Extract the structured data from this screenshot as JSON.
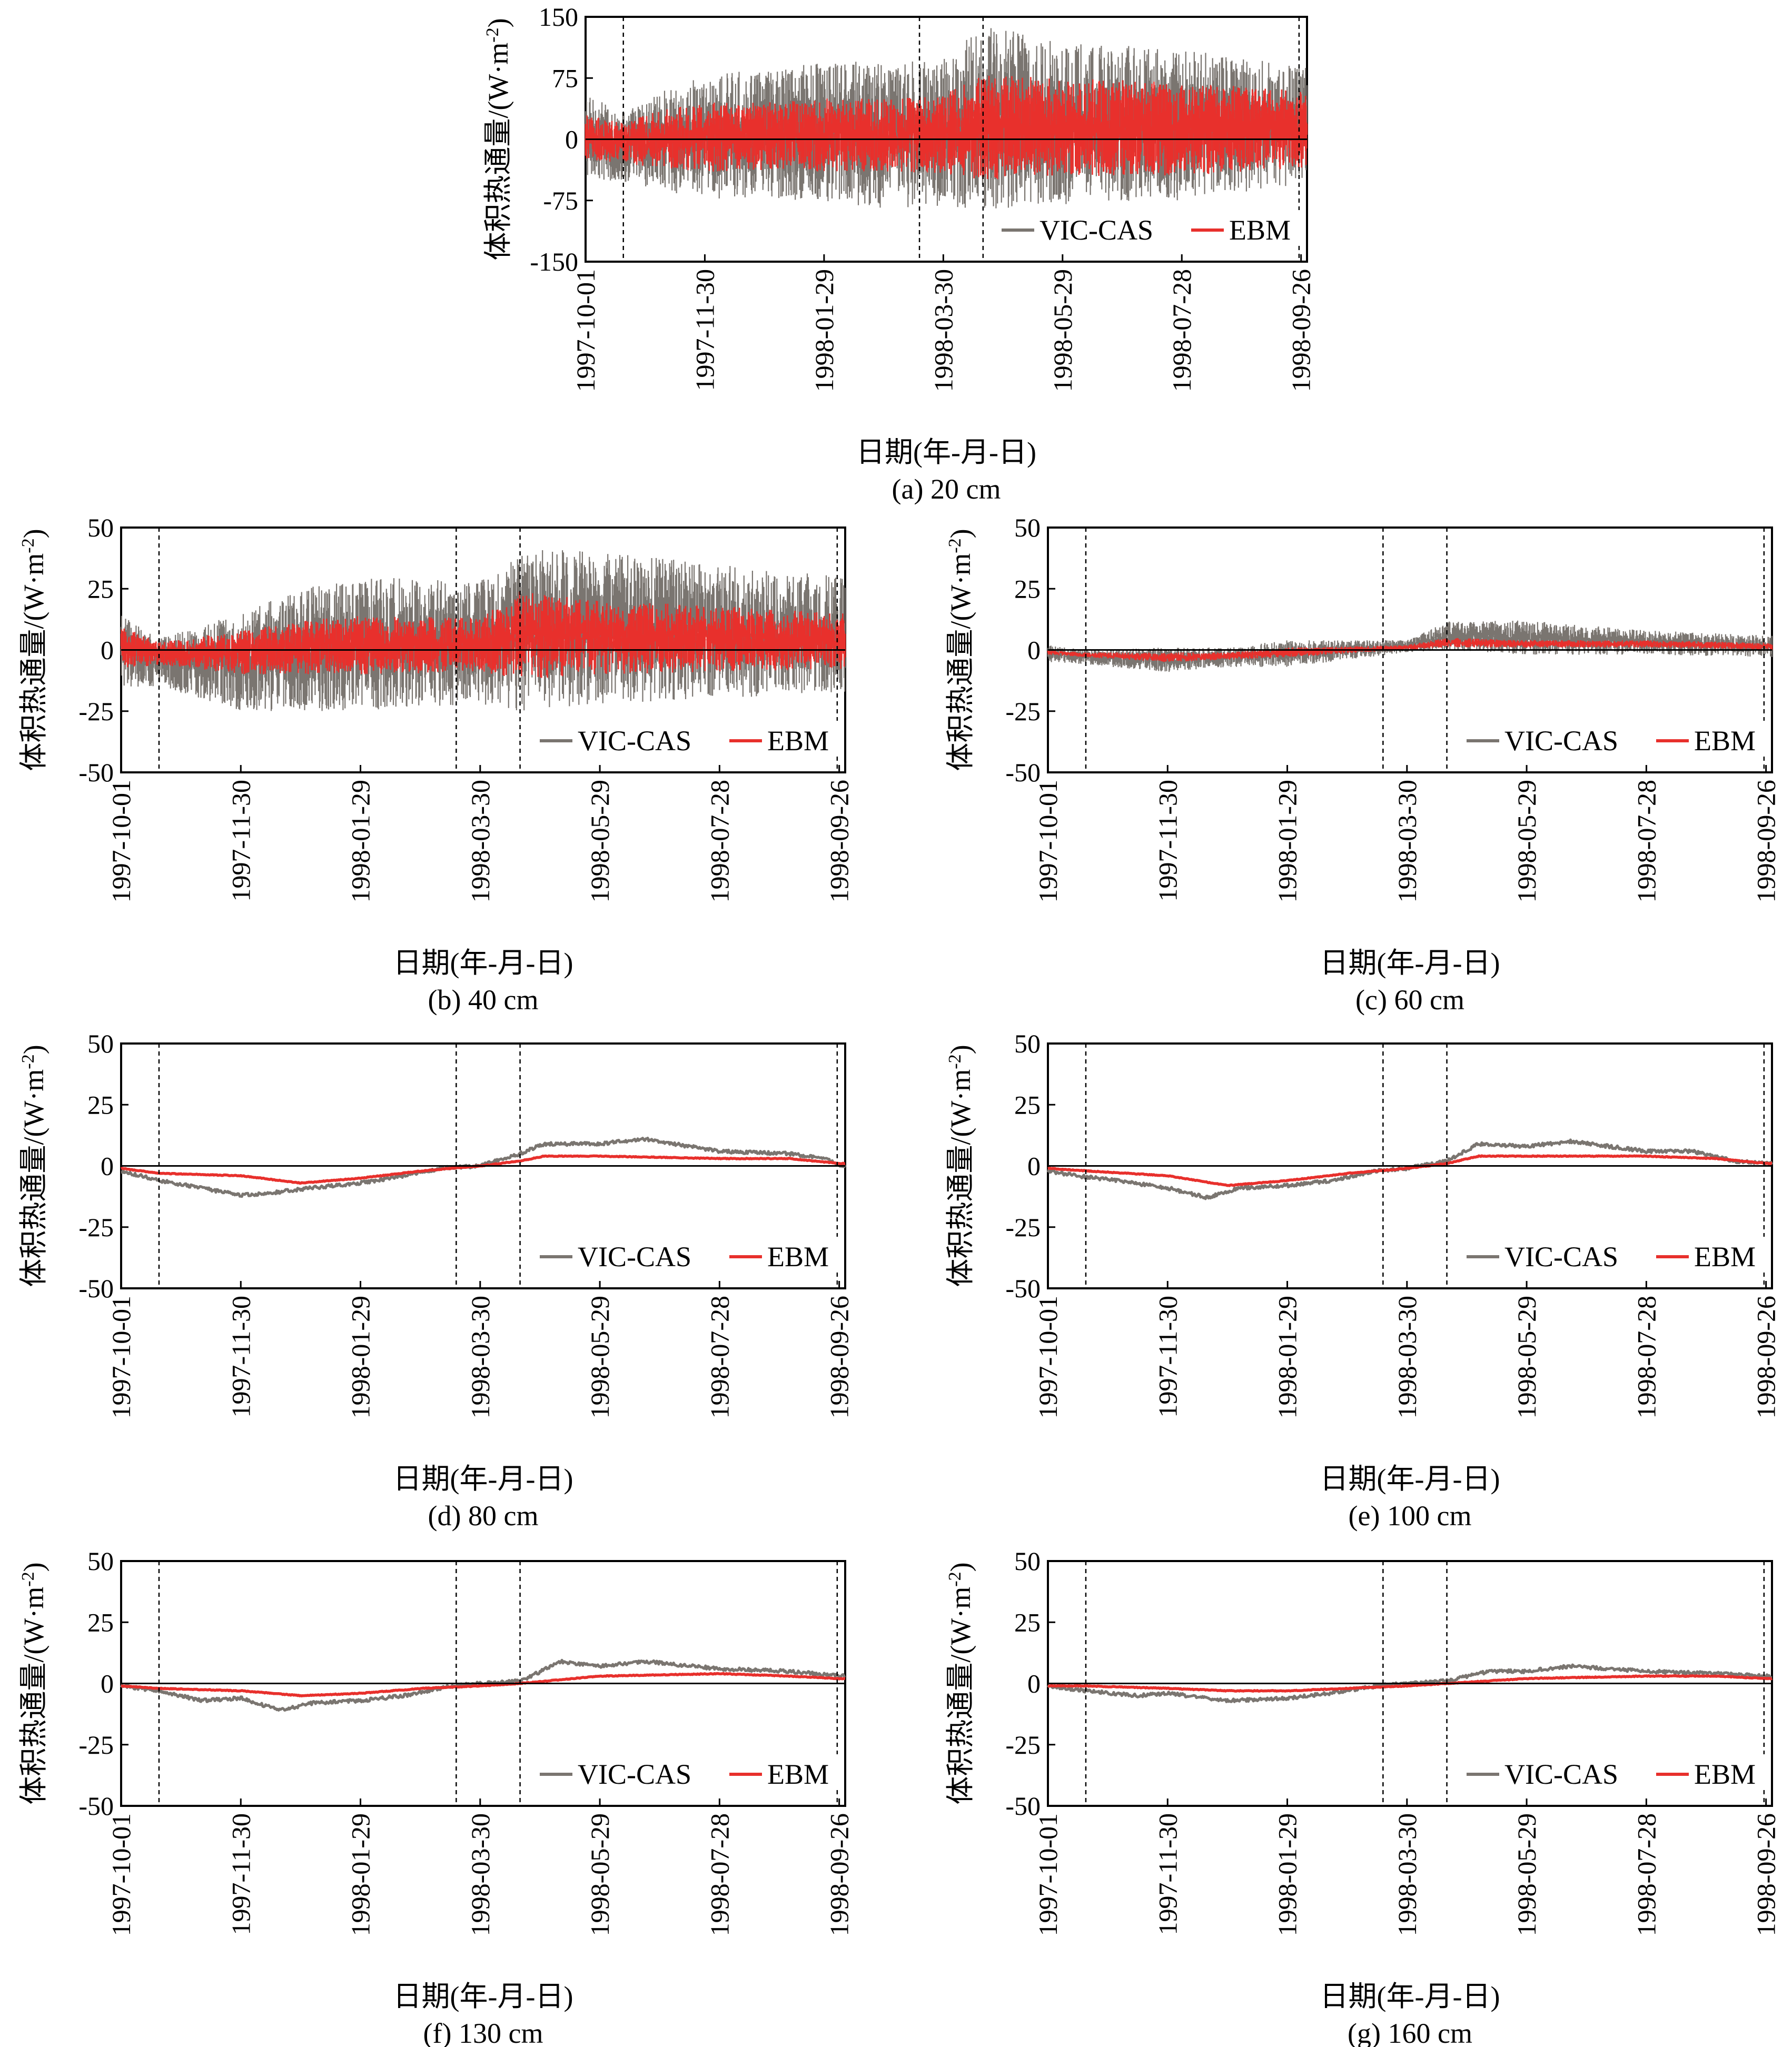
{
  "figure": {
    "x_ticks": [
      "1997-10-01",
      "1997-11-30",
      "1998-01-29",
      "1998-03-30",
      "1998-05-29",
      "1998-07-28",
      "1998-09-26"
    ],
    "xlabel": "日期(年-月-日)",
    "ylabel_main": "体积热通量/(W·m",
    "ylabel_sup": "-2",
    "ylabel_close": ")",
    "legend": [
      "VIC-CAS",
      "EBM"
    ],
    "colors": {
      "VIC-CAS": "#7a7570",
      "EBM": "#e8302c",
      "zero_line": "#000000",
      "divider": "#000000"
    },
    "dividers": [
      "1997-10-20",
      "1998-03-18",
      "1998-04-19",
      "1998-09-25"
    ]
  },
  "chart_data": [
    {
      "type": "line",
      "caption": "(a) 20 cm",
      "ylim": [
        -150,
        150
      ],
      "yticks": [
        -150,
        -75,
        0,
        75,
        150
      ],
      "xlabel": "日期(年-月-日)",
      "ylabel": "体积热通量/(W·m-2)",
      "grid": false,
      "legend_position": "bottom-right",
      "noisy": true,
      "series": [
        {
          "name": "VIC-CAS",
          "x": [
            "1997-10-01",
            "1997-10-20",
            "1997-11-05",
            "1997-11-30",
            "1997-12-30",
            "1998-01-29",
            "1998-02-28",
            "1998-03-30",
            "1998-04-19",
            "1998-05-29",
            "1998-07-28",
            "1998-09-26"
          ],
          "upper": [
            55,
            35,
            55,
            80,
            85,
            95,
            95,
            100,
            140,
            120,
            110,
            90
          ],
          "lower": [
            -45,
            -55,
            -60,
            -75,
            -70,
            -80,
            -85,
            -85,
            -90,
            -80,
            -75,
            -55
          ]
        },
        {
          "name": "EBM",
          "x": [
            "1997-10-01",
            "1997-10-20",
            "1997-11-05",
            "1997-11-30",
            "1997-12-30",
            "1998-01-29",
            "1998-02-28",
            "1998-03-30",
            "1998-04-19",
            "1998-05-29",
            "1998-07-28",
            "1998-09-26"
          ],
          "upper": [
            30,
            20,
            35,
            45,
            45,
            50,
            50,
            55,
            80,
            75,
            70,
            60
          ],
          "lower": [
            -25,
            -30,
            -35,
            -40,
            -38,
            -40,
            -40,
            -42,
            -50,
            -45,
            -45,
            -35
          ]
        }
      ]
    },
    {
      "type": "line",
      "caption": "(b) 40 cm",
      "ylim": [
        -50,
        50
      ],
      "yticks": [
        -50,
        -25,
        0,
        25,
        50
      ],
      "xlabel": "日期(年-月-日)",
      "ylabel": "体积热通量/(W·m-2)",
      "grid": false,
      "legend_position": "bottom-right",
      "noisy": true,
      "series": [
        {
          "name": "VIC-CAS",
          "x": [
            "1997-10-01",
            "1997-10-20",
            "1997-11-30",
            "1997-12-30",
            "1998-01-29",
            "1998-03-30",
            "1998-04-19",
            "1998-05-29",
            "1998-07-28",
            "1998-09-26"
          ],
          "upper": [
            15,
            5,
            15,
            25,
            30,
            28,
            42,
            40,
            35,
            30
          ],
          "lower": [
            -15,
            -15,
            -25,
            -25,
            -25,
            -22,
            -25,
            -22,
            -20,
            -18
          ]
        },
        {
          "name": "EBM",
          "x": [
            "1997-10-01",
            "1997-10-20",
            "1997-11-30",
            "1997-12-30",
            "1998-01-29",
            "1998-03-30",
            "1998-04-19",
            "1998-05-29",
            "1998-07-28",
            "1998-09-26"
          ],
          "upper": [
            10,
            3,
            8,
            12,
            14,
            13,
            24,
            20,
            18,
            15
          ],
          "lower": [
            -8,
            -6,
            -10,
            -10,
            -10,
            -9,
            -12,
            -10,
            -9,
            -8
          ]
        }
      ]
    },
    {
      "type": "line",
      "caption": "(c) 60 cm",
      "ylim": [
        -50,
        50
      ],
      "yticks": [
        -50,
        -25,
        0,
        25,
        50
      ],
      "xlabel": "日期(年-月-日)",
      "ylabel": "体积热通量/(W·m-2)",
      "grid": false,
      "legend_position": "bottom-right",
      "noisy": true,
      "series": [
        {
          "name": "VIC-CAS",
          "x": [
            "1997-10-01",
            "1997-10-20",
            "1997-11-30",
            "1997-12-30",
            "1998-01-29",
            "1998-03-30",
            "1998-04-19",
            "1998-05-29",
            "1998-07-28",
            "1998-09-26"
          ],
          "upper": [
            2,
            0,
            1,
            1,
            4,
            4,
            12,
            12,
            8,
            6
          ],
          "lower": [
            -5,
            -6,
            -9,
            -7,
            -7,
            -1,
            0,
            -2,
            -2,
            -3
          ]
        },
        {
          "name": "EBM",
          "x": [
            "1997-10-01",
            "1997-10-20",
            "1997-11-30",
            "1997-12-30",
            "1998-01-29",
            "1998-03-30",
            "1998-04-19",
            "1998-05-29",
            "1998-07-28",
            "1998-09-26"
          ],
          "upper": [
            0,
            -1,
            -1,
            -1,
            1,
            2,
            5,
            4,
            4,
            3
          ],
          "lower": [
            -2,
            -3,
            -5,
            -4,
            -3,
            0,
            1,
            1,
            1,
            0
          ]
        }
      ]
    },
    {
      "type": "line",
      "caption": "(d) 80 cm",
      "ylim": [
        -50,
        50
      ],
      "yticks": [
        -50,
        -25,
        0,
        25,
        50
      ],
      "xlabel": "日期(年-月-日)",
      "ylabel": "体积热通量/(W·m-2)",
      "grid": false,
      "legend_position": "bottom-right",
      "noisy": false,
      "series": [
        {
          "name": "VIC-CAS",
          "x": [
            "1997-10-01",
            "1997-10-20",
            "1997-11-10",
            "1997-11-30",
            "1997-12-15",
            "1998-01-05",
            "1998-01-29",
            "1998-02-20",
            "1998-03-10",
            "1998-03-30",
            "1998-04-19",
            "1998-05-01",
            "1998-05-29",
            "1998-06-20",
            "1998-07-28",
            "1998-09-01",
            "1998-09-20",
            "1998-09-26"
          ],
          "y": [
            -2,
            -6,
            -9,
            -12,
            -11,
            -9,
            -7,
            -4,
            -1,
            0,
            5,
            9,
            9,
            11,
            6,
            5,
            3,
            0
          ]
        },
        {
          "name": "EBM",
          "x": [
            "1997-10-01",
            "1997-10-20",
            "1997-11-30",
            "1997-12-30",
            "1998-01-29",
            "1998-03-01",
            "1998-03-30",
            "1998-04-19",
            "1998-05-01",
            "1998-05-29",
            "1998-07-28",
            "1998-09-01",
            "1998-09-26"
          ],
          "y": [
            -1,
            -3,
            -4,
            -7,
            -5,
            -2,
            0,
            2,
            4,
            4,
            3,
            3,
            1
          ]
        }
      ]
    },
    {
      "type": "line",
      "caption": "(e) 100 cm",
      "ylim": [
        -50,
        50
      ],
      "yticks": [
        -50,
        -25,
        0,
        25,
        50
      ],
      "xlabel": "日期(年-月-日)",
      "ylabel": "体积热通量/(W·m-2)",
      "grid": false,
      "legend_position": "bottom-right",
      "noisy": false,
      "series": [
        {
          "name": "VIC-CAS",
          "x": [
            "1997-10-01",
            "1997-10-15",
            "1997-11-05",
            "1997-11-30",
            "1997-12-20",
            "1998-01-05",
            "1998-01-29",
            "1998-02-20",
            "1998-03-15",
            "1998-03-30",
            "1998-04-19",
            "1998-05-05",
            "1998-05-29",
            "1998-06-20",
            "1998-07-28",
            "1998-08-20",
            "1998-09-10",
            "1998-09-26"
          ],
          "y": [
            -2,
            -4,
            -6,
            -9,
            -13,
            -9,
            -8,
            -6,
            -2,
            -1,
            2,
            9,
            8,
            10,
            6,
            6,
            2,
            1
          ]
        },
        {
          "name": "EBM",
          "x": [
            "1997-10-01",
            "1997-10-20",
            "1997-11-30",
            "1997-12-30",
            "1998-01-29",
            "1998-03-01",
            "1998-03-30",
            "1998-04-19",
            "1998-05-05",
            "1998-05-29",
            "1998-07-28",
            "1998-09-01",
            "1998-09-26"
          ],
          "y": [
            -1,
            -2,
            -4,
            -8,
            -6,
            -3,
            -1,
            1,
            4,
            4,
            4,
            3,
            1
          ]
        }
      ]
    },
    {
      "type": "line",
      "caption": "(f) 130 cm",
      "ylim": [
        -50,
        50
      ],
      "yticks": [
        -50,
        -25,
        0,
        25,
        50
      ],
      "xlabel": "日期(年-月-日)",
      "ylabel": "体积热通量/(W·m-2)",
      "grid": false,
      "legend_position": "bottom-right",
      "noisy": false,
      "series": [
        {
          "name": "VIC-CAS",
          "x": [
            "1997-10-01",
            "1997-10-20",
            "1997-11-10",
            "1997-11-30",
            "1997-12-20",
            "1998-01-05",
            "1998-01-29",
            "1998-02-20",
            "1998-03-15",
            "1998-03-30",
            "1998-04-19",
            "1998-05-10",
            "1998-05-29",
            "1998-06-20",
            "1998-07-28",
            "1998-09-01",
            "1998-09-26"
          ],
          "y": [
            -1,
            -3,
            -7,
            -6,
            -11,
            -8,
            -7,
            -5,
            -1,
            0,
            1,
            9,
            7,
            9,
            6,
            5,
            3
          ]
        },
        {
          "name": "EBM",
          "x": [
            "1997-10-01",
            "1997-10-20",
            "1997-11-30",
            "1997-12-30",
            "1998-01-29",
            "1998-03-01",
            "1998-03-30",
            "1998-04-19",
            "1998-05-29",
            "1998-07-28",
            "1998-09-01",
            "1998-09-26"
          ],
          "y": [
            -1,
            -2,
            -3,
            -5,
            -4,
            -2,
            -1,
            0,
            3,
            4,
            3,
            2
          ]
        }
      ]
    },
    {
      "type": "line",
      "caption": "(g) 160 cm",
      "ylim": [
        -50,
        50
      ],
      "yticks": [
        -50,
        -25,
        0,
        25,
        50
      ],
      "xlabel": "日期(年-月-日)",
      "ylabel": "体积热通量/(W·m-2)",
      "grid": false,
      "legend_position": "bottom-right",
      "noisy": false,
      "series": [
        {
          "name": "VIC-CAS",
          "x": [
            "1997-10-01",
            "1997-10-20",
            "1997-11-15",
            "1997-11-30",
            "1997-12-30",
            "1998-01-29",
            "1998-02-20",
            "1998-03-15",
            "1998-03-30",
            "1998-04-19",
            "1998-05-10",
            "1998-05-29",
            "1998-06-20",
            "1998-07-28",
            "1998-09-01",
            "1998-09-26"
          ],
          "y": [
            -1,
            -3,
            -5,
            -4,
            -7,
            -6,
            -4,
            -1,
            0,
            1,
            5,
            5,
            7,
            5,
            4,
            3
          ]
        },
        {
          "name": "EBM",
          "x": [
            "1997-10-01",
            "1997-10-20",
            "1997-11-30",
            "1997-12-30",
            "1998-01-29",
            "1998-03-01",
            "1998-03-30",
            "1998-04-19",
            "1998-05-29",
            "1998-07-28",
            "1998-09-01",
            "1998-09-26"
          ],
          "y": [
            -1,
            -1,
            -2,
            -3,
            -3,
            -2,
            -1,
            0,
            2,
            3,
            3,
            2
          ]
        }
      ]
    }
  ]
}
